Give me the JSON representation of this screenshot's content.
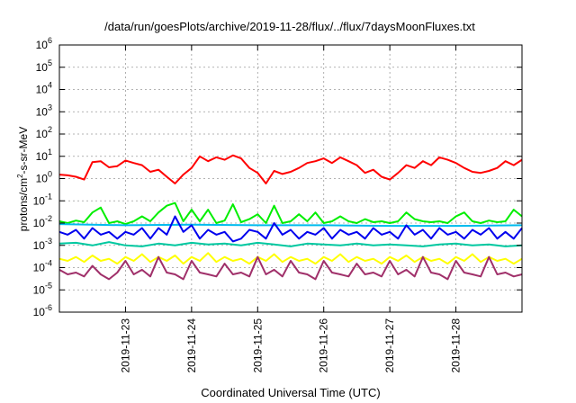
{
  "chart_data": {
    "type": "line",
    "title": "/data/run/goesPlots/archive/2019-11-28/flux/../flux/7daysMoonFluxes.txt",
    "xlabel": "Coordinated Universal Time (UTC)",
    "ylabel_parts": [
      "protons/cm",
      "2",
      "-s-sr-MeV"
    ],
    "y_scale": "log",
    "ylim_exponent": [
      -6,
      6
    ],
    "y_tick_base": "10",
    "y_tick_exponents": [
      "-6",
      "-5",
      "-4",
      "-3",
      "-2",
      "-1",
      "0",
      "1",
      "2",
      "3",
      "4",
      "5",
      "6"
    ],
    "xlim": [
      "2019-11-22T00:00",
      "2019-11-29T00:00"
    ],
    "x_ticks": [
      {
        "t": "2019-11-23T00:00",
        "label": "2019-11-23"
      },
      {
        "t": "2019-11-24T00:00",
        "label": "2019-11-24"
      },
      {
        "t": "2019-11-25T00:00",
        "label": "2019-11-25"
      },
      {
        "t": "2019-11-26T00:00",
        "label": "2019-11-26"
      },
      {
        "t": "2019-11-27T00:00",
        "label": "2019-11-27"
      },
      {
        "t": "2019-11-28T00:00",
        "label": "2019-11-28"
      }
    ],
    "grid": true,
    "series": [
      {
        "color": "#ff0000",
        "x": [
          "2019-11-22T00:00",
          "2019-11-22T03:00",
          "2019-11-22T06:00",
          "2019-11-22T09:00",
          "2019-11-22T12:00",
          "2019-11-22T15:00",
          "2019-11-22T18:00",
          "2019-11-22T21:00",
          "2019-11-23T00:00",
          "2019-11-23T03:00",
          "2019-11-23T06:00",
          "2019-11-23T09:00",
          "2019-11-23T12:00",
          "2019-11-23T15:00",
          "2019-11-23T18:00",
          "2019-11-23T21:00",
          "2019-11-24T00:00",
          "2019-11-24T03:00",
          "2019-11-24T06:00",
          "2019-11-24T09:00",
          "2019-11-24T12:00",
          "2019-11-24T15:00",
          "2019-11-24T18:00",
          "2019-11-24T21:00",
          "2019-11-25T00:00",
          "2019-11-25T03:00",
          "2019-11-25T06:00",
          "2019-11-25T09:00",
          "2019-11-25T12:00",
          "2019-11-25T15:00",
          "2019-11-25T18:00",
          "2019-11-25T21:00",
          "2019-11-26T00:00",
          "2019-11-26T03:00",
          "2019-11-26T06:00",
          "2019-11-26T09:00",
          "2019-11-26T12:00",
          "2019-11-26T15:00",
          "2019-11-26T18:00",
          "2019-11-26T21:00",
          "2019-11-27T00:00",
          "2019-11-27T03:00",
          "2019-11-27T06:00",
          "2019-11-27T09:00",
          "2019-11-27T12:00",
          "2019-11-27T15:00",
          "2019-11-27T18:00",
          "2019-11-27T21:00",
          "2019-11-28T00:00",
          "2019-11-28T03:00",
          "2019-11-28T06:00",
          "2019-11-28T09:00",
          "2019-11-28T12:00",
          "2019-11-28T15:00",
          "2019-11-28T18:00",
          "2019-11-28T21:00",
          "2019-11-29T00:00"
        ],
        "values": [
          1.5,
          1.4,
          1.2,
          0.9,
          5.5,
          6.0,
          3.2,
          3.6,
          6.5,
          5.0,
          4.0,
          2.0,
          2.5,
          1.2,
          0.6,
          1.5,
          3.0,
          10,
          6.0,
          9.0,
          7.0,
          11,
          8.0,
          3.0,
          1.8,
          0.6,
          2.2,
          1.6,
          2.0,
          3.0,
          5.0,
          6.0,
          8.0,
          5.0,
          9.0,
          6.0,
          4.0,
          1.8,
          2.5,
          1.2,
          0.9,
          1.8,
          4.0,
          3.0,
          6.0,
          4.0,
          9.0,
          7.0,
          5.0,
          3.0,
          2.0,
          1.8,
          2.2,
          3.0,
          6.0,
          4.0,
          7.0
        ]
      },
      {
        "color": "#00ee00",
        "x": [
          "2019-11-22T00:00",
          "2019-11-22T03:00",
          "2019-11-22T06:00",
          "2019-11-22T09:00",
          "2019-11-22T12:00",
          "2019-11-22T15:00",
          "2019-11-22T18:00",
          "2019-11-22T21:00",
          "2019-11-23T00:00",
          "2019-11-23T03:00",
          "2019-11-23T06:00",
          "2019-11-23T09:00",
          "2019-11-23T12:00",
          "2019-11-23T15:00",
          "2019-11-23T18:00",
          "2019-11-23T21:00",
          "2019-11-24T00:00",
          "2019-11-24T03:00",
          "2019-11-24T06:00",
          "2019-11-24T09:00",
          "2019-11-24T12:00",
          "2019-11-24T15:00",
          "2019-11-24T18:00",
          "2019-11-24T21:00",
          "2019-11-25T00:00",
          "2019-11-25T03:00",
          "2019-11-25T06:00",
          "2019-11-25T09:00",
          "2019-11-25T12:00",
          "2019-11-25T15:00",
          "2019-11-25T18:00",
          "2019-11-25T21:00",
          "2019-11-26T00:00",
          "2019-11-26T03:00",
          "2019-11-26T06:00",
          "2019-11-26T09:00",
          "2019-11-26T12:00",
          "2019-11-26T15:00",
          "2019-11-26T18:00",
          "2019-11-26T21:00",
          "2019-11-27T00:00",
          "2019-11-27T03:00",
          "2019-11-27T06:00",
          "2019-11-27T09:00",
          "2019-11-27T12:00",
          "2019-11-27T15:00",
          "2019-11-27T18:00",
          "2019-11-27T21:00",
          "2019-11-28T00:00",
          "2019-11-28T03:00",
          "2019-11-28T06:00",
          "2019-11-28T09:00",
          "2019-11-28T12:00",
          "2019-11-28T15:00",
          "2019-11-28T18:00",
          "2019-11-28T21:00",
          "2019-11-29T00:00"
        ],
        "values": [
          0.012,
          0.01,
          0.013,
          0.011,
          0.03,
          0.05,
          0.01,
          0.012,
          0.009,
          0.012,
          0.02,
          0.012,
          0.03,
          0.06,
          0.08,
          0.012,
          0.04,
          0.012,
          0.04,
          0.01,
          0.013,
          0.07,
          0.011,
          0.015,
          0.025,
          0.01,
          0.06,
          0.01,
          0.012,
          0.025,
          0.012,
          0.03,
          0.01,
          0.012,
          0.02,
          0.012,
          0.01,
          0.015,
          0.011,
          0.012,
          0.01,
          0.012,
          0.03,
          0.015,
          0.012,
          0.011,
          0.012,
          0.01,
          0.02,
          0.03,
          0.012,
          0.01,
          0.013,
          0.011,
          0.012,
          0.04,
          0.02
        ]
      },
      {
        "color": "#00bbee",
        "x": [
          "2019-11-22T00:00",
          "2019-11-23T00:00",
          "2019-11-24T00:00",
          "2019-11-25T00:00",
          "2019-11-26T00:00",
          "2019-11-27T00:00",
          "2019-11-28T00:00",
          "2019-11-29T00:00"
        ],
        "values": [
          0.009,
          0.008,
          0.0085,
          0.008,
          0.008,
          0.0075,
          0.0075,
          0.008
        ]
      },
      {
        "color": "#0000ee",
        "x": [
          "2019-11-22T00:00",
          "2019-11-22T03:00",
          "2019-11-22T06:00",
          "2019-11-22T09:00",
          "2019-11-22T12:00",
          "2019-11-22T15:00",
          "2019-11-22T18:00",
          "2019-11-22T21:00",
          "2019-11-23T00:00",
          "2019-11-23T03:00",
          "2019-11-23T06:00",
          "2019-11-23T09:00",
          "2019-11-23T12:00",
          "2019-11-23T15:00",
          "2019-11-23T18:00",
          "2019-11-23T21:00",
          "2019-11-24T00:00",
          "2019-11-24T03:00",
          "2019-11-24T06:00",
          "2019-11-24T09:00",
          "2019-11-24T12:00",
          "2019-11-24T15:00",
          "2019-11-24T18:00",
          "2019-11-24T21:00",
          "2019-11-25T00:00",
          "2019-11-25T03:00",
          "2019-11-25T06:00",
          "2019-11-25T09:00",
          "2019-11-25T12:00",
          "2019-11-25T15:00",
          "2019-11-25T18:00",
          "2019-11-25T21:00",
          "2019-11-26T00:00",
          "2019-11-26T03:00",
          "2019-11-26T06:00",
          "2019-11-26T09:00",
          "2019-11-26T12:00",
          "2019-11-26T15:00",
          "2019-11-26T18:00",
          "2019-11-26T21:00",
          "2019-11-27T00:00",
          "2019-11-27T03:00",
          "2019-11-27T06:00",
          "2019-11-27T09:00",
          "2019-11-27T12:00",
          "2019-11-27T15:00",
          "2019-11-27T18:00",
          "2019-11-27T21:00",
          "2019-11-28T00:00",
          "2019-11-28T03:00",
          "2019-11-28T06:00",
          "2019-11-28T09:00",
          "2019-11-28T12:00",
          "2019-11-28T15:00",
          "2019-11-28T18:00",
          "2019-11-28T21:00",
          "2019-11-29T00:00"
        ],
        "values": [
          0.004,
          0.003,
          0.005,
          0.002,
          0.006,
          0.003,
          0.004,
          0.002,
          0.004,
          0.003,
          0.006,
          0.002,
          0.006,
          0.003,
          0.02,
          0.004,
          0.008,
          0.002,
          0.005,
          0.003,
          0.004,
          0.0015,
          0.002,
          0.005,
          0.004,
          0.002,
          0.01,
          0.003,
          0.005,
          0.002,
          0.004,
          0.003,
          0.006,
          0.002,
          0.005,
          0.003,
          0.004,
          0.002,
          0.006,
          0.003,
          0.004,
          0.002,
          0.008,
          0.003,
          0.005,
          0.002,
          0.006,
          0.003,
          0.004,
          0.002,
          0.005,
          0.003,
          0.006,
          0.002,
          0.004,
          0.002,
          0.006
        ]
      },
      {
        "color": "#00c8a0",
        "x": [
          "2019-11-22T00:00",
          "2019-11-22T06:00",
          "2019-11-22T12:00",
          "2019-11-22T18:00",
          "2019-11-23T00:00",
          "2019-11-23T06:00",
          "2019-11-23T12:00",
          "2019-11-23T18:00",
          "2019-11-24T00:00",
          "2019-11-24T06:00",
          "2019-11-24T12:00",
          "2019-11-24T18:00",
          "2019-11-25T00:00",
          "2019-11-25T06:00",
          "2019-11-25T12:00",
          "2019-11-25T18:00",
          "2019-11-26T00:00",
          "2019-11-26T06:00",
          "2019-11-26T12:00",
          "2019-11-26T18:00",
          "2019-11-27T00:00",
          "2019-11-27T06:00",
          "2019-11-27T12:00",
          "2019-11-27T18:00",
          "2019-11-28T00:00",
          "2019-11-28T06:00",
          "2019-11-28T12:00",
          "2019-11-28T18:00",
          "2019-11-29T00:00"
        ],
        "values": [
          0.0012,
          0.0013,
          0.001,
          0.0014,
          0.001,
          0.0009,
          0.0012,
          0.001,
          0.0013,
          0.0011,
          0.0012,
          0.001,
          0.0013,
          0.0011,
          0.0009,
          0.0012,
          0.0011,
          0.001,
          0.0012,
          0.001,
          0.0011,
          0.001,
          0.0009,
          0.0011,
          0.0012,
          0.001,
          0.0011,
          0.0009,
          0.001
        ]
      },
      {
        "color": "#ffff00",
        "x": [
          "2019-11-22T00:00",
          "2019-11-22T03:00",
          "2019-11-22T06:00",
          "2019-11-22T09:00",
          "2019-11-22T12:00",
          "2019-11-22T15:00",
          "2019-11-22T18:00",
          "2019-11-22T21:00",
          "2019-11-23T00:00",
          "2019-11-23T03:00",
          "2019-11-23T06:00",
          "2019-11-23T09:00",
          "2019-11-23T12:00",
          "2019-11-23T15:00",
          "2019-11-23T18:00",
          "2019-11-23T21:00",
          "2019-11-24T00:00",
          "2019-11-24T03:00",
          "2019-11-24T06:00",
          "2019-11-24T09:00",
          "2019-11-24T12:00",
          "2019-11-24T15:00",
          "2019-11-24T18:00",
          "2019-11-24T21:00",
          "2019-11-25T00:00",
          "2019-11-25T03:00",
          "2019-11-25T06:00",
          "2019-11-25T09:00",
          "2019-11-25T12:00",
          "2019-11-25T15:00",
          "2019-11-25T18:00",
          "2019-11-25T21:00",
          "2019-11-26T00:00",
          "2019-11-26T03:00",
          "2019-11-26T06:00",
          "2019-11-26T09:00",
          "2019-11-26T12:00",
          "2019-11-26T15:00",
          "2019-11-26T18:00",
          "2019-11-26T21:00",
          "2019-11-27T00:00",
          "2019-11-27T03:00",
          "2019-11-27T06:00",
          "2019-11-27T09:00",
          "2019-11-27T12:00",
          "2019-11-27T15:00",
          "2019-11-27T18:00",
          "2019-11-27T21:00",
          "2019-11-28T00:00",
          "2019-11-28T03:00",
          "2019-11-28T06:00",
          "2019-11-28T09:00",
          "2019-11-28T12:00",
          "2019-11-28T15:00",
          "2019-11-28T18:00",
          "2019-11-28T21:00",
          "2019-11-29T00:00"
        ],
        "values": [
          0.00025,
          0.0002,
          0.0003,
          0.00018,
          0.00035,
          0.0002,
          0.00025,
          0.00015,
          0.0003,
          0.0002,
          0.0004,
          0.00018,
          0.0003,
          0.0002,
          0.00035,
          0.00015,
          0.0003,
          0.0002,
          0.00045,
          0.00018,
          0.0003,
          0.0002,
          0.00025,
          0.00015,
          0.0003,
          0.0002,
          0.0004,
          0.00018,
          0.0003,
          0.0002,
          0.00025,
          0.00015,
          0.0003,
          0.0002,
          0.0004,
          0.00018,
          0.0003,
          0.0002,
          0.00025,
          0.00015,
          0.0003,
          0.0002,
          0.00035,
          0.00018,
          0.0003,
          0.0002,
          0.00025,
          0.00015,
          0.0003,
          0.0002,
          0.0004,
          0.00018,
          0.0003,
          0.0002,
          0.00025,
          0.00015,
          0.00025
        ]
      },
      {
        "color": "#a0306a",
        "x": [
          "2019-11-22T00:00",
          "2019-11-22T03:00",
          "2019-11-22T06:00",
          "2019-11-22T09:00",
          "2019-11-22T12:00",
          "2019-11-22T15:00",
          "2019-11-22T18:00",
          "2019-11-22T21:00",
          "2019-11-23T00:00",
          "2019-11-23T03:00",
          "2019-11-23T06:00",
          "2019-11-23T09:00",
          "2019-11-23T12:00",
          "2019-11-23T15:00",
          "2019-11-23T18:00",
          "2019-11-23T21:00",
          "2019-11-24T00:00",
          "2019-11-24T03:00",
          "2019-11-24T06:00",
          "2019-11-24T09:00",
          "2019-11-24T12:00",
          "2019-11-24T15:00",
          "2019-11-24T18:00",
          "2019-11-24T21:00",
          "2019-11-25T00:00",
          "2019-11-25T03:00",
          "2019-11-25T06:00",
          "2019-11-25T09:00",
          "2019-11-25T12:00",
          "2019-11-25T15:00",
          "2019-11-25T18:00",
          "2019-11-25T21:00",
          "2019-11-26T00:00",
          "2019-11-26T03:00",
          "2019-11-26T06:00",
          "2019-11-26T09:00",
          "2019-11-26T12:00",
          "2019-11-26T15:00",
          "2019-11-26T18:00",
          "2019-11-26T21:00",
          "2019-11-27T00:00",
          "2019-11-27T03:00",
          "2019-11-27T06:00",
          "2019-11-27T09:00",
          "2019-11-27T12:00",
          "2019-11-27T15:00",
          "2019-11-27T18:00",
          "2019-11-27T21:00",
          "2019-11-28T00:00",
          "2019-11-28T03:00",
          "2019-11-28T06:00",
          "2019-11-28T09:00",
          "2019-11-28T12:00",
          "2019-11-28T15:00",
          "2019-11-28T18:00",
          "2019-11-28T21:00",
          "2019-11-29T00:00"
        ],
        "values": [
          8e-05,
          5e-05,
          6e-05,
          4e-05,
          0.00012,
          5e-05,
          3e-05,
          6e-05,
          0.0002,
          5e-05,
          8e-05,
          4e-05,
          0.0003,
          6e-05,
          5e-05,
          3e-05,
          0.0002,
          6e-05,
          5e-05,
          4e-05,
          0.00015,
          5e-05,
          6e-05,
          4e-05,
          0.0003,
          5e-05,
          8e-05,
          4e-05,
          0.0002,
          6e-05,
          5e-05,
          3e-05,
          0.0002,
          6e-05,
          5e-05,
          4e-05,
          0.00015,
          5e-05,
          6e-05,
          4e-05,
          0.0002,
          5e-05,
          8e-05,
          4e-05,
          0.0003,
          6e-05,
          5e-05,
          3e-05,
          0.0002,
          6e-05,
          5e-05,
          4e-05,
          0.0003,
          5e-05,
          6e-05,
          4e-05,
          5e-05
        ]
      }
    ]
  }
}
